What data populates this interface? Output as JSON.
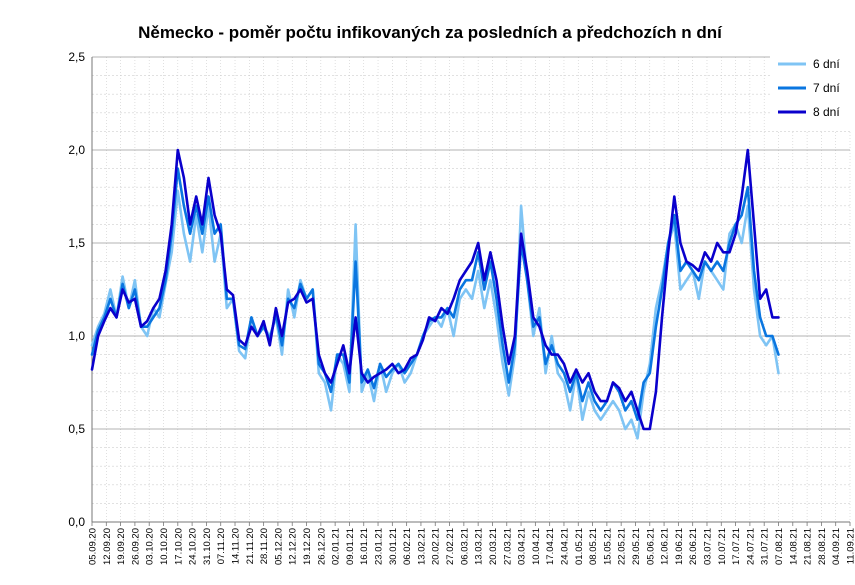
{
  "chart_data": {
    "type": "line",
    "title": "Německo - poměr počtu infikovaných za posledních a předchozích n dní",
    "xlabel": "",
    "ylabel": "",
    "ylim": [
      0,
      2.5
    ],
    "yticks": [
      0,
      0.5,
      1.0,
      1.5,
      2.0,
      2.5
    ],
    "ytick_labels": [
      "0,0",
      "0,5",
      "1,0",
      "1,5",
      "2,0",
      "2,5"
    ],
    "x_start": "2020-09-05",
    "x_end": "2021-09-11",
    "x_tick_labels": [
      "05.09.20",
      "12.09.20",
      "19.09.20",
      "26.09.20",
      "03.10.20",
      "10.10.20",
      "17.10.20",
      "24.10.20",
      "31.10.20",
      "07.11.20",
      "14.11.20",
      "21.11.20",
      "28.11.20",
      "05.12.20",
      "12.12.20",
      "19.12.20",
      "26.12.20",
      "02.01.21",
      "09.01.21",
      "16.01.21",
      "23.01.21",
      "30.01.21",
      "06.02.21",
      "13.02.21",
      "20.02.21",
      "27.02.21",
      "06.03.21",
      "13.03.21",
      "20.03.21",
      "27.03.21",
      "03.04.21",
      "10.04.21",
      "17.04.21",
      "24.04.21",
      "01.05.21",
      "08.05.21",
      "15.05.21",
      "22.05.21",
      "29.05.21",
      "05.06.21",
      "12.06.21",
      "19.06.21",
      "26.06.21",
      "03.07.21",
      "10.07.21",
      "17.07.21",
      "24.07.21",
      "31.07.21",
      "07.08.21",
      "14.08.21",
      "21.08.21",
      "28.08.21",
      "04.09.21",
      "11.09.21"
    ],
    "grid": true,
    "legend": "top-right",
    "series": [
      {
        "name": "6 dní",
        "color": "#7fc4f4",
        "sampled_every_days": 3,
        "values": [
          0.95,
          1.05,
          1.12,
          1.25,
          1.1,
          1.32,
          1.15,
          1.3,
          1.05,
          1.0,
          1.15,
          1.1,
          1.28,
          1.45,
          1.78,
          1.55,
          1.4,
          1.65,
          1.45,
          1.7,
          1.4,
          1.55,
          1.15,
          1.2,
          0.92,
          0.88,
          1.1,
          1.0,
          1.05,
          1.0,
          1.1,
          0.9,
          1.25,
          1.1,
          1.3,
          1.2,
          1.25,
          0.8,
          0.75,
          0.6,
          0.9,
          0.85,
          0.7,
          1.6,
          0.7,
          0.8,
          0.65,
          0.85,
          0.7,
          0.8,
          0.85,
          0.75,
          0.8,
          0.9,
          1.0,
          1.05,
          1.1,
          1.05,
          1.15,
          1.0,
          1.2,
          1.25,
          1.2,
          1.35,
          1.15,
          1.3,
          1.1,
          0.85,
          0.68,
          0.9,
          1.7,
          1.3,
          1.0,
          1.15,
          0.8,
          1.0,
          0.8,
          0.75,
          0.6,
          0.8,
          0.55,
          0.7,
          0.6,
          0.55,
          0.6,
          0.65,
          0.6,
          0.5,
          0.55,
          0.45,
          0.7,
          0.85,
          1.15,
          1.3,
          1.5,
          1.6,
          1.25,
          1.3,
          1.35,
          1.2,
          1.4,
          1.35,
          1.3,
          1.25,
          1.55,
          1.6,
          1.5,
          1.7,
          1.25,
          1.0,
          0.95,
          1.0,
          0.8
        ]
      },
      {
        "name": "7 dní",
        "color": "#0a76e0",
        "sampled_every_days": 3,
        "values": [
          0.9,
          1.03,
          1.1,
          1.2,
          1.1,
          1.28,
          1.15,
          1.25,
          1.05,
          1.05,
          1.1,
          1.15,
          1.3,
          1.55,
          1.9,
          1.7,
          1.55,
          1.7,
          1.55,
          1.75,
          1.55,
          1.6,
          1.2,
          1.2,
          0.95,
          0.93,
          1.1,
          1.0,
          1.05,
          0.98,
          1.12,
          0.95,
          1.2,
          1.15,
          1.28,
          1.2,
          1.25,
          0.85,
          0.8,
          0.7,
          0.9,
          0.9,
          0.75,
          1.4,
          0.75,
          0.82,
          0.72,
          0.85,
          0.78,
          0.82,
          0.85,
          0.8,
          0.85,
          0.9,
          1.0,
          1.08,
          1.1,
          1.1,
          1.15,
          1.1,
          1.25,
          1.3,
          1.3,
          1.45,
          1.25,
          1.4,
          1.2,
          0.95,
          0.75,
          0.95,
          1.5,
          1.3,
          1.05,
          1.1,
          0.85,
          0.95,
          0.85,
          0.8,
          0.7,
          0.8,
          0.65,
          0.75,
          0.65,
          0.6,
          0.65,
          0.75,
          0.7,
          0.6,
          0.65,
          0.55,
          0.75,
          0.8,
          1.05,
          1.25,
          1.5,
          1.65,
          1.35,
          1.4,
          1.35,
          1.3,
          1.4,
          1.35,
          1.4,
          1.35,
          1.5,
          1.6,
          1.65,
          1.8,
          1.35,
          1.1,
          1.0,
          1.0,
          0.9
        ]
      },
      {
        "name": "8 dní",
        "color": "#0a00cc",
        "sampled_every_days": 3,
        "values": [
          0.82,
          1.0,
          1.08,
          1.15,
          1.1,
          1.25,
          1.18,
          1.2,
          1.05,
          1.08,
          1.15,
          1.2,
          1.35,
          1.6,
          2.0,
          1.85,
          1.6,
          1.75,
          1.6,
          1.85,
          1.65,
          1.55,
          1.25,
          1.22,
          0.98,
          0.95,
          1.05,
          1.0,
          1.08,
          0.95,
          1.15,
          1.0,
          1.18,
          1.2,
          1.25,
          1.18,
          1.2,
          0.9,
          0.8,
          0.75,
          0.85,
          0.95,
          0.8,
          1.1,
          0.8,
          0.75,
          0.78,
          0.8,
          0.82,
          0.85,
          0.8,
          0.82,
          0.88,
          0.9,
          0.98,
          1.1,
          1.08,
          1.15,
          1.12,
          1.2,
          1.3,
          1.35,
          1.4,
          1.5,
          1.3,
          1.45,
          1.3,
          1.05,
          0.85,
          1.0,
          1.55,
          1.35,
          1.1,
          1.05,
          0.95,
          0.9,
          0.9,
          0.85,
          0.75,
          0.82,
          0.75,
          0.8,
          0.7,
          0.65,
          0.65,
          0.75,
          0.72,
          0.65,
          0.7,
          0.6,
          0.5,
          0.5,
          0.7,
          1.1,
          1.45,
          1.75,
          1.5,
          1.4,
          1.38,
          1.35,
          1.45,
          1.4,
          1.5,
          1.45,
          1.45,
          1.55,
          1.75,
          2.0,
          1.6,
          1.2,
          1.25,
          1.1,
          1.1
        ]
      }
    ]
  }
}
